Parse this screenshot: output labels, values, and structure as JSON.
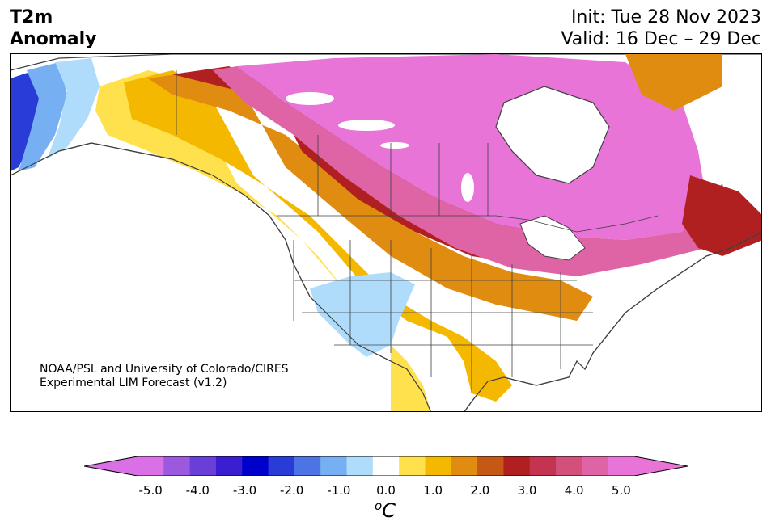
{
  "header": {
    "variable_line1": "T2m",
    "variable_line2": "Anomaly",
    "init": "Init: Tue 28 Nov 2023",
    "valid": "Valid: 16 Dec – 29 Dec"
  },
  "credit": {
    "line1": "NOAA/PSL and University of Colorado/CIRES",
    "line2": "Experimental LIM Forecast (v1.2)"
  },
  "colorbar": {
    "colors": [
      "#da70e6",
      "#9b59e0",
      "#6a3fd8",
      "#3a1fd0",
      "#0000cd",
      "#2a3cd8",
      "#4d74e4",
      "#77b0f2",
      "#b0dcfc",
      "#ffffff",
      "#ffe14d",
      "#f5b800",
      "#e08c10",
      "#c65816",
      "#b02020",
      "#c43450",
      "#d2507a",
      "#de64a6",
      "#e874d8"
    ],
    "over_color": "#e874d8",
    "under_color": "#da70e6",
    "tick_labels": [
      "-5.0",
      "-4.0",
      "-3.0",
      "-2.0",
      "-1.0",
      "0.0",
      "1.0",
      "2.0",
      "3.0",
      "4.0",
      "5.0"
    ],
    "unit_base": "C",
    "unit_sup": "o"
  },
  "map_colors": {
    "ocean": "#ffffff",
    "coast": "#404040"
  }
}
